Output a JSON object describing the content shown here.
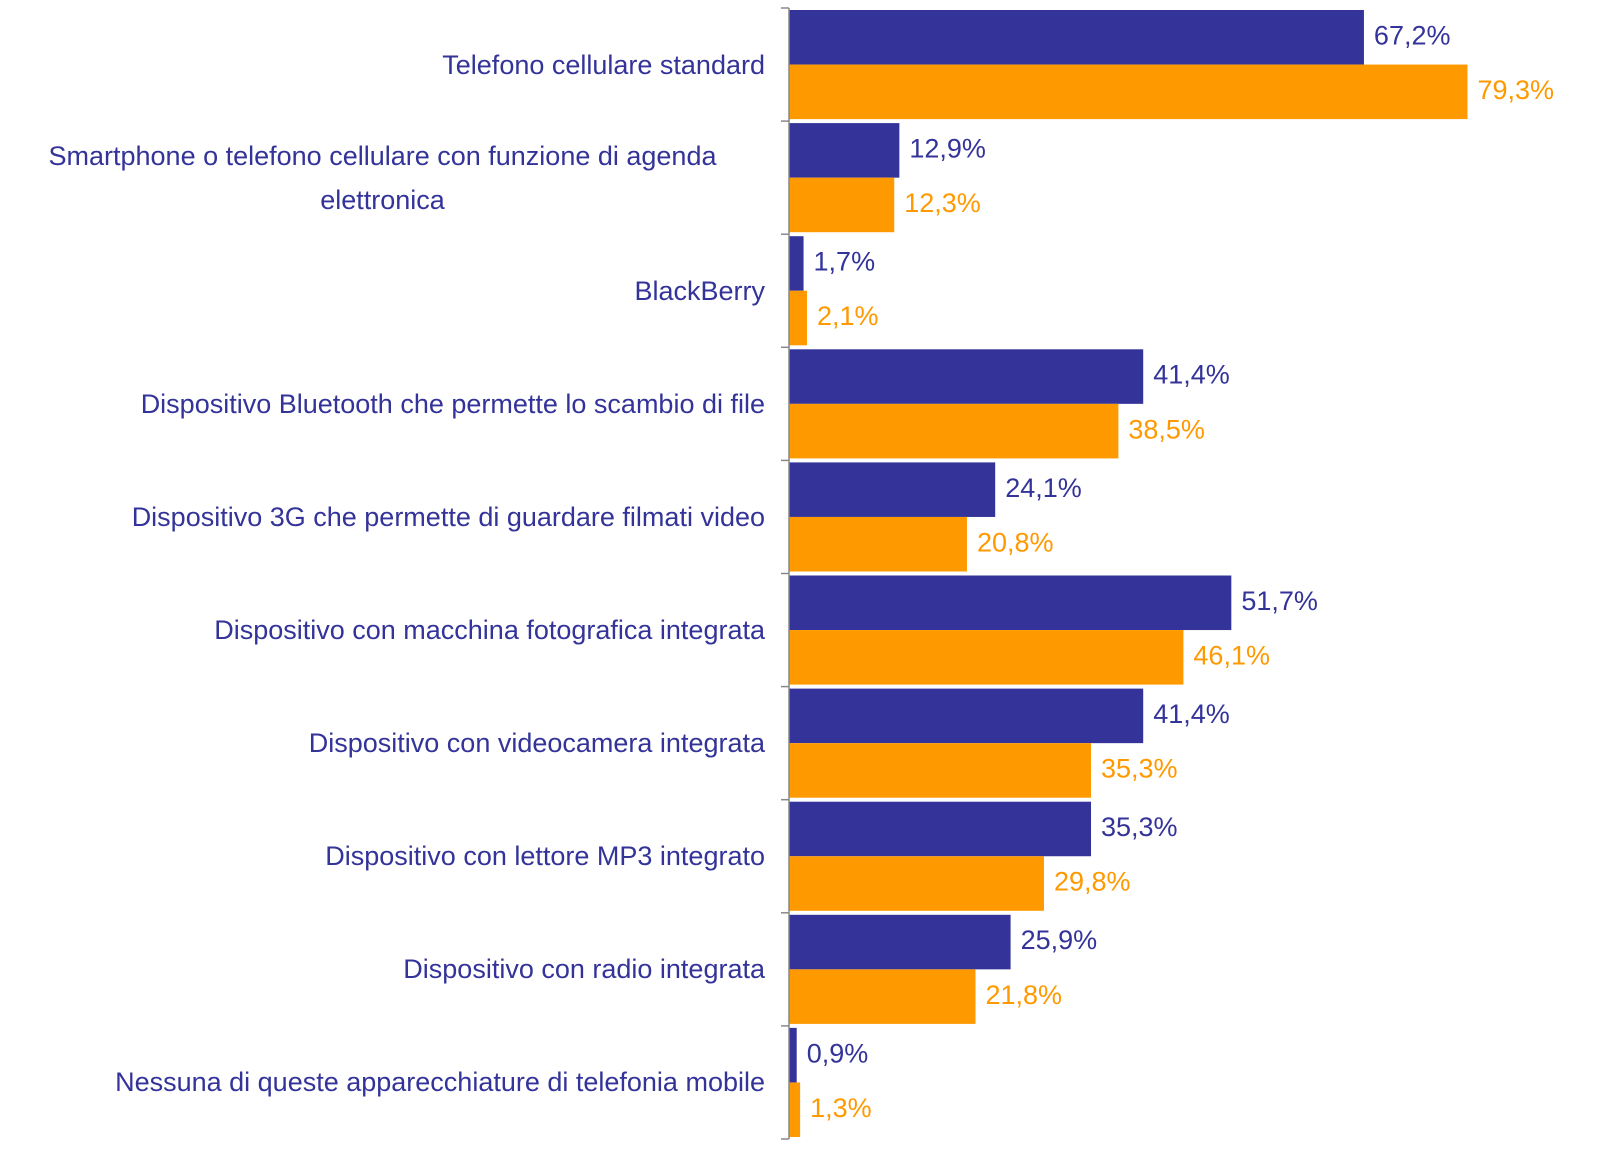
{
  "chart_data": {
    "type": "hbar",
    "categories": [
      "Telefono cellulare standard",
      "Smartphone o telefono cellulare con funzione di agenda elettronica",
      "BlackBerry",
      "Dispositivo Bluetooth che permette lo scambio di file",
      "Dispositivo 3G che permette di guardare filmati video",
      "Dispositivo con macchina fotografica integrata",
      "Dispositivo con videocamera integrata",
      "Dispositivo con lettore MP3 integrato",
      "Dispositivo con radio integrata",
      "Nessuna di queste apparecchiature di telefonia mobile"
    ],
    "series": [
      {
        "color": "#333399",
        "values": [
          67.2,
          12.9,
          1.7,
          41.4,
          24.1,
          51.7,
          41.4,
          35.3,
          25.9,
          0.9
        ],
        "value_labels": [
          "67,2%",
          "12,9%",
          "1,7%",
          "41,4%",
          "24,1%",
          "51,7%",
          "41,4%",
          "35,3%",
          "25,9%",
          "0,9%"
        ]
      },
      {
        "color": "#ff9900",
        "values": [
          79.3,
          12.3,
          2.1,
          38.5,
          20.8,
          46.1,
          35.3,
          29.8,
          21.8,
          1.3
        ],
        "value_labels": [
          "79,3%",
          "12,3%",
          "2,1%",
          "38,5%",
          "20,8%",
          "46,1%",
          "35,3%",
          "29,8%",
          "21,8%",
          "1,3%"
        ]
      }
    ],
    "xlim": [
      0,
      90
    ]
  }
}
